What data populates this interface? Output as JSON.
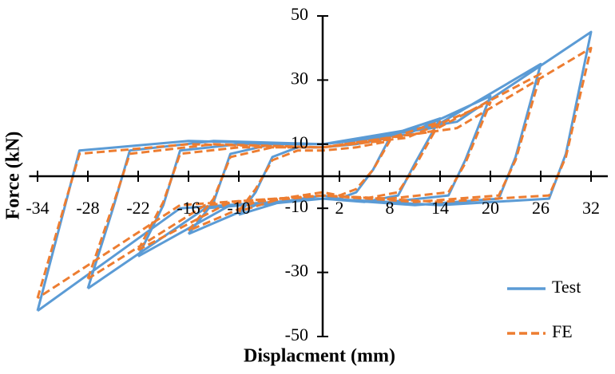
{
  "chart_data": {
    "type": "line",
    "x_label": "Displacment (mm)",
    "y_label": "Force (kN)",
    "xlim": [
      -35,
      34
    ],
    "ylim": [
      -50,
      50
    ],
    "xticks": [
      -34,
      -28,
      -22,
      -16,
      -10,
      2,
      8,
      14,
      20,
      26,
      32
    ],
    "yticks": [
      -50,
      -30,
      -10,
      10,
      30,
      50
    ],
    "legend": "lower right",
    "series": [
      {
        "name": "Test",
        "color": "#5b9bd5",
        "dash": false,
        "x": [
          -10,
          -8,
          -6,
          -3,
          0,
          4,
          8,
          6,
          4,
          2,
          0,
          -5,
          -10,
          null,
          -16,
          -13,
          -11,
          -6,
          0,
          7,
          14,
          11,
          9,
          5,
          0,
          -8,
          -16,
          null,
          -22,
          -19,
          -17,
          -10,
          0,
          10,
          20,
          17,
          15,
          8,
          0,
          -11,
          -22,
          null,
          -28,
          -25,
          -23,
          -13,
          0,
          13,
          26,
          23,
          21,
          11,
          0,
          -14,
          -28,
          null,
          -34,
          -31,
          -29,
          -16,
          0,
          16,
          32,
          29,
          27,
          14,
          0,
          -17,
          -34
        ],
        "values": [
          -12,
          -5,
          6,
          9,
          9,
          10,
          12,
          2,
          -5,
          -7,
          -6,
          -8,
          -12,
          null,
          -18,
          -8,
          7,
          10,
          10,
          12,
          18,
          4,
          -6,
          -8,
          -7,
          -9,
          -18,
          null,
          -25,
          -9,
          8,
          10,
          10,
          13,
          25,
          5,
          -6,
          -8,
          -7,
          -9,
          -25,
          null,
          -35,
          -10,
          8,
          11,
          10,
          15,
          35,
          6,
          -7,
          -9,
          -7,
          -10,
          -35,
          null,
          -42,
          -12,
          8,
          11,
          10,
          17,
          45,
          7,
          -7,
          -9,
          -7,
          -10,
          -42
        ]
      },
      {
        "name": "FE",
        "color": "#ed7d31",
        "dash": true,
        "x": [
          -10,
          -8,
          -6,
          -3,
          0,
          4,
          8,
          6,
          4,
          2,
          0,
          -5,
          -10,
          null,
          -16,
          -13,
          -11,
          -6,
          0,
          7,
          14,
          11,
          9,
          5,
          0,
          -8,
          -16,
          null,
          -22,
          -19,
          -17,
          -10,
          0,
          10,
          20,
          17,
          15,
          8,
          0,
          -11,
          -22,
          null,
          -28,
          -25,
          -23,
          -13,
          0,
          13,
          26,
          23,
          21,
          11,
          0,
          -14,
          -28,
          null,
          -34,
          -31,
          -29,
          -16,
          0,
          16,
          32,
          29,
          27,
          14,
          0,
          -17,
          -34
        ],
        "values": [
          -11,
          -4,
          5,
          8,
          8,
          9,
          11,
          2,
          -4,
          -6,
          -5,
          -7,
          -11,
          null,
          -17,
          -7,
          6,
          9,
          9,
          11,
          17,
          3,
          -5,
          -7,
          -6,
          -8,
          -17,
          null,
          -23,
          -8,
          7,
          9,
          9,
          12,
          23,
          4,
          -5,
          -7,
          -6,
          -8,
          -23,
          null,
          -32,
          -9,
          7,
          10,
          9,
          14,
          32,
          5,
          -6,
          -8,
          -6,
          -9,
          -32,
          null,
          -38,
          -11,
          7,
          10,
          9,
          15,
          40,
          6,
          -6,
          -8,
          -6,
          -9,
          -38
        ]
      }
    ]
  }
}
